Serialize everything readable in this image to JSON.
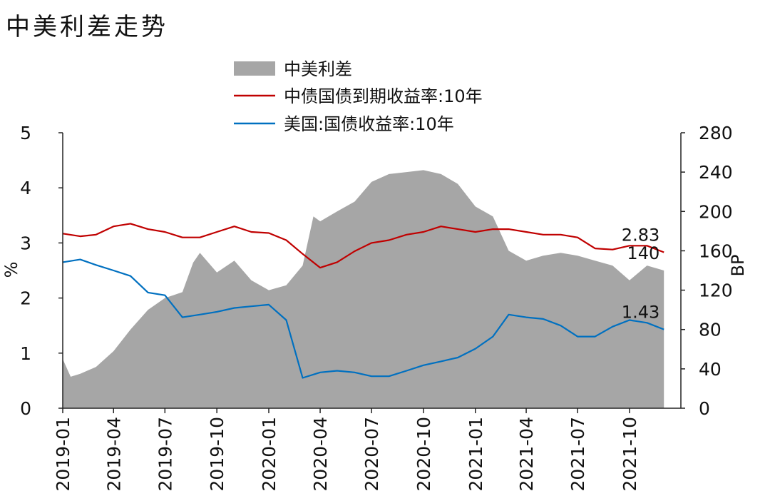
{
  "chart_data": {
    "type": "line",
    "title": "中美利差走势",
    "left_axis": {
      "label": "%",
      "ylim": [
        0,
        5
      ],
      "ticks": [
        "0",
        "1",
        "2",
        "3",
        "4",
        "5"
      ]
    },
    "right_axis": {
      "label": "BP",
      "ylim": [
        0,
        280
      ],
      "ticks": [
        "0",
        "40",
        "80",
        "120",
        "160",
        "200",
        "240",
        "280"
      ]
    },
    "x_range": [
      "2019-01",
      "2021-12"
    ],
    "x_ticks": [
      "2019-01",
      "2019-04",
      "2019-07",
      "2019-10",
      "2020-01",
      "2020-04",
      "2020-07",
      "2020-10",
      "2021-01",
      "2021-04",
      "2021-07",
      "2021-10"
    ],
    "legend_position": "top",
    "series": [
      {
        "name": "中美利差",
        "kind": "area",
        "axis": "right",
        "color": "#a6a6a6",
        "points": [
          [
            "2019-01",
            50
          ],
          [
            "2019-01-15",
            32
          ],
          [
            "2019-02",
            35
          ],
          [
            "2019-03",
            42
          ],
          [
            "2019-04",
            58
          ],
          [
            "2019-05",
            80
          ],
          [
            "2019-06",
            100
          ],
          [
            "2019-07",
            112
          ],
          [
            "2019-08",
            118
          ],
          [
            "2019-08-20",
            148
          ],
          [
            "2019-09",
            158
          ],
          [
            "2019-10",
            138
          ],
          [
            "2019-11",
            150
          ],
          [
            "2019-12",
            130
          ],
          [
            "2020-01",
            120
          ],
          [
            "2020-02",
            125
          ],
          [
            "2020-03",
            145
          ],
          [
            "2020-03-20",
            195
          ],
          [
            "2020-04",
            190
          ],
          [
            "2020-05",
            200
          ],
          [
            "2020-06",
            210
          ],
          [
            "2020-07",
            230
          ],
          [
            "2020-08",
            238
          ],
          [
            "2020-09",
            240
          ],
          [
            "2020-10",
            242
          ],
          [
            "2020-11",
            238
          ],
          [
            "2020-12",
            228
          ],
          [
            "2021-01",
            205
          ],
          [
            "2021-02",
            195
          ],
          [
            "2021-03",
            160
          ],
          [
            "2021-04",
            150
          ],
          [
            "2021-05",
            155
          ],
          [
            "2021-06",
            158
          ],
          [
            "2021-07",
            155
          ],
          [
            "2021-08",
            150
          ],
          [
            "2021-09",
            145
          ],
          [
            "2021-10",
            130
          ],
          [
            "2021-11",
            145
          ],
          [
            "2021-12",
            140
          ]
        ],
        "end_label": "140"
      },
      {
        "name": "中债国债到期收益率:10年",
        "kind": "line",
        "axis": "left",
        "color": "#c00000",
        "points": [
          [
            "2019-01",
            3.17
          ],
          [
            "2019-02",
            3.12
          ],
          [
            "2019-03",
            3.15
          ],
          [
            "2019-04",
            3.3
          ],
          [
            "2019-05",
            3.35
          ],
          [
            "2019-06",
            3.25
          ],
          [
            "2019-07",
            3.2
          ],
          [
            "2019-08",
            3.1
          ],
          [
            "2019-09",
            3.1
          ],
          [
            "2019-10",
            3.2
          ],
          [
            "2019-11",
            3.3
          ],
          [
            "2019-12",
            3.2
          ],
          [
            "2020-01",
            3.18
          ],
          [
            "2020-02",
            3.05
          ],
          [
            "2020-03",
            2.8
          ],
          [
            "2020-04",
            2.55
          ],
          [
            "2020-05",
            2.65
          ],
          [
            "2020-06",
            2.85
          ],
          [
            "2020-07",
            3.0
          ],
          [
            "2020-08",
            3.05
          ],
          [
            "2020-09",
            3.15
          ],
          [
            "2020-10",
            3.2
          ],
          [
            "2020-11",
            3.3
          ],
          [
            "2020-12",
            3.25
          ],
          [
            "2021-01",
            3.2
          ],
          [
            "2021-02",
            3.25
          ],
          [
            "2021-03",
            3.25
          ],
          [
            "2021-04",
            3.2
          ],
          [
            "2021-05",
            3.15
          ],
          [
            "2021-06",
            3.15
          ],
          [
            "2021-07",
            3.1
          ],
          [
            "2021-08",
            2.9
          ],
          [
            "2021-09",
            2.88
          ],
          [
            "2021-10",
            2.95
          ],
          [
            "2021-11",
            2.95
          ],
          [
            "2021-12",
            2.83
          ]
        ],
        "end_label": "2.83"
      },
      {
        "name": "美国:国债收益率:10年",
        "kind": "line",
        "axis": "left",
        "color": "#0070c0",
        "points": [
          [
            "2019-01",
            2.65
          ],
          [
            "2019-02",
            2.7
          ],
          [
            "2019-03",
            2.6
          ],
          [
            "2019-04",
            2.5
          ],
          [
            "2019-05",
            2.4
          ],
          [
            "2019-06",
            2.1
          ],
          [
            "2019-07",
            2.05
          ],
          [
            "2019-08",
            1.65
          ],
          [
            "2019-09",
            1.7
          ],
          [
            "2019-10",
            1.75
          ],
          [
            "2019-11",
            1.82
          ],
          [
            "2019-12",
            1.85
          ],
          [
            "2020-01",
            1.88
          ],
          [
            "2020-02",
            1.6
          ],
          [
            "2020-03",
            0.55
          ],
          [
            "2020-04",
            0.65
          ],
          [
            "2020-05",
            0.68
          ],
          [
            "2020-06",
            0.65
          ],
          [
            "2020-07",
            0.58
          ],
          [
            "2020-08",
            0.58
          ],
          [
            "2020-09",
            0.68
          ],
          [
            "2020-10",
            0.78
          ],
          [
            "2020-11",
            0.85
          ],
          [
            "2020-12",
            0.92
          ],
          [
            "2021-01",
            1.08
          ],
          [
            "2021-02",
            1.3
          ],
          [
            "2021-03",
            1.7
          ],
          [
            "2021-04",
            1.65
          ],
          [
            "2021-05",
            1.62
          ],
          [
            "2021-06",
            1.5
          ],
          [
            "2021-07",
            1.3
          ],
          [
            "2021-08",
            1.3
          ],
          [
            "2021-09",
            1.48
          ],
          [
            "2021-10",
            1.6
          ],
          [
            "2021-11",
            1.55
          ],
          [
            "2021-12",
            1.43
          ]
        ],
        "end_label": "1.43"
      }
    ]
  }
}
